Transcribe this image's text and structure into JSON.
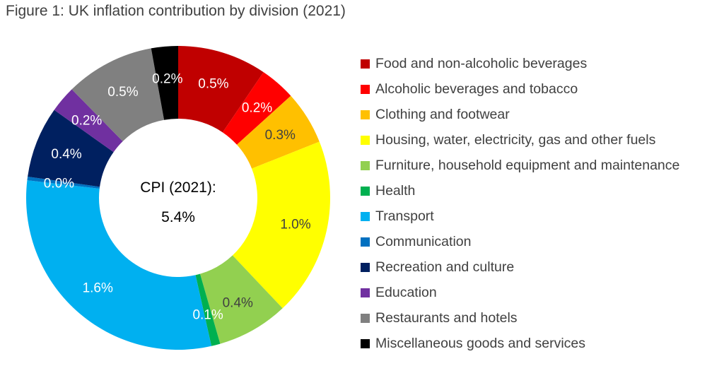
{
  "chart_data": {
    "type": "pie",
    "title": "Figure 1: UK inflation contribution by division (2021)",
    "center_label": [
      "CPI (2021):",
      "5.4%"
    ],
    "legend_position": "right",
    "slices": [
      {
        "name": "Food and non-alcoholic beverages",
        "value": 0.5,
        "label": "0.5%",
        "color": "#C00000",
        "label_color": "#FFFFFF"
      },
      {
        "name": "Alcoholic beverages and tobacco",
        "value": 0.2,
        "label": "0.2%",
        "color": "#FF0000",
        "label_color": "#FFFFFF"
      },
      {
        "name": "Clothing and footwear",
        "value": 0.3,
        "label": "0.3%",
        "color": "#FFC000",
        "label_color": "#404040"
      },
      {
        "name": "Housing, water, electricity, gas and other fuels",
        "value": 1.0,
        "label": "1.0%",
        "color": "#FFFF00",
        "label_color": "#404040"
      },
      {
        "name": "Furniture, household equipment and maintenance",
        "value": 0.4,
        "label": "0.4%",
        "color": "#92D050",
        "label_color": "#404040"
      },
      {
        "name": "Health",
        "value": 0.05,
        "label": "0.1%",
        "color": "#00B050",
        "label_color": "#FFFFFF"
      },
      {
        "name": "Transport",
        "value": 1.6,
        "label": "1.6%",
        "color": "#00B0F0",
        "label_color": "#FFFFFF"
      },
      {
        "name": "Communication",
        "value": 0.02,
        "label": "0.0%",
        "color": "#0070C0",
        "label_color": "#FFFFFF"
      },
      {
        "name": "Recreation and culture",
        "value": 0.4,
        "label": "0.4%",
        "color": "#002060",
        "label_color": "#FFFFFF"
      },
      {
        "name": "Education",
        "value": 0.15,
        "label": "0.2%",
        "color": "#7030A0",
        "label_color": "#FFFFFF"
      },
      {
        "name": "Restaurants and hotels",
        "value": 0.5,
        "label": "0.5%",
        "color": "#808080",
        "label_color": "#FFFFFF"
      },
      {
        "name": "Miscellaneous goods and services",
        "value": 0.15,
        "label": "0.2%",
        "color": "#000000",
        "label_color": "#FFFFFF"
      }
    ]
  }
}
